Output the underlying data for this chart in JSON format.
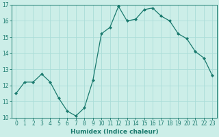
{
  "x": [
    0,
    1,
    2,
    3,
    4,
    5,
    6,
    7,
    8,
    9,
    10,
    11,
    12,
    13,
    14,
    15,
    16,
    17,
    18,
    19,
    20,
    21,
    22,
    23
  ],
  "y": [
    11.5,
    12.2,
    12.2,
    12.7,
    12.2,
    11.2,
    10.4,
    10.1,
    10.6,
    12.3,
    15.2,
    15.6,
    16.9,
    16.0,
    16.1,
    16.7,
    16.8,
    16.3,
    16.0,
    15.2,
    14.9,
    14.1,
    13.7,
    12.6
  ],
  "line_color": "#1a7a6e",
  "marker": "D",
  "marker_size": 2.0,
  "linewidth": 0.9,
  "bg_color": "#cceee8",
  "grid_color": "#aaddd8",
  "xlabel": "Humidex (Indice chaleur)",
  "ylim": [
    10,
    17
  ],
  "xlim": [
    -0.5,
    23.5
  ],
  "yticks": [
    10,
    11,
    12,
    13,
    14,
    15,
    16,
    17
  ],
  "xticks": [
    0,
    1,
    2,
    3,
    4,
    5,
    6,
    7,
    8,
    9,
    10,
    11,
    12,
    13,
    14,
    15,
    16,
    17,
    18,
    19,
    20,
    21,
    22,
    23
  ],
  "tick_color": "#1a7a6e",
  "label_fontsize": 6.0,
  "tick_fontsize": 5.5,
  "xlabel_fontsize": 6.5
}
